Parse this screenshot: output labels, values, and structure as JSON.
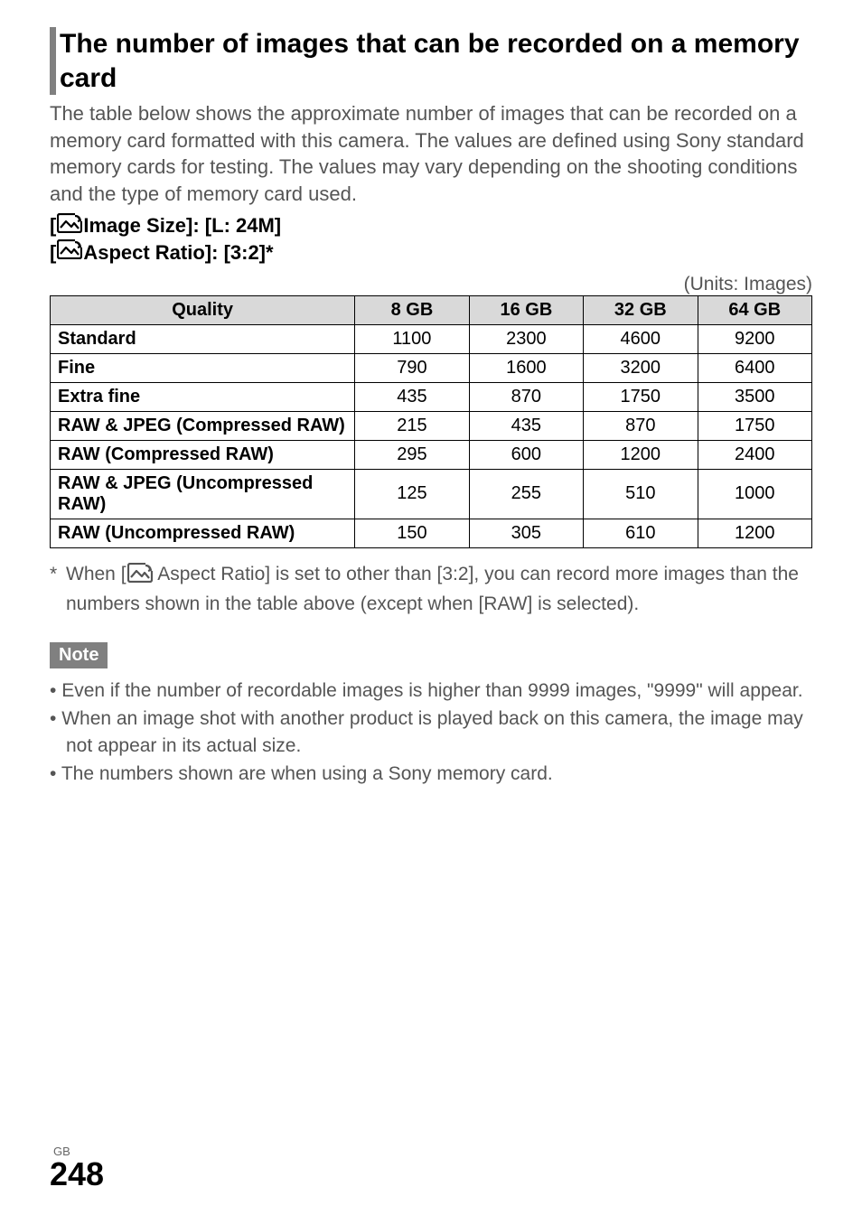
{
  "section": {
    "title": "The number of images that can be recorded on a memory card"
  },
  "intro": "The table below shows the approximate number of images that can be recorded on a memory card formatted with this camera. The values are defined using Sony standard memory cards for testing. The values may vary depending on the shooting conditions and the type of memory card used.",
  "settings": {
    "line1_prefix": "[",
    "line1_suffix": " Image Size]: [L: 24M]",
    "line2_prefix": "[",
    "line2_suffix": " Aspect Ratio]: [3:2]*"
  },
  "units_label": "(Units: Images)",
  "table": {
    "columns": [
      "Quality",
      "8 GB",
      "16 GB",
      "32 GB",
      "64 GB"
    ],
    "col_widths_pct": [
      40,
      15,
      15,
      15,
      15
    ],
    "header_bg": "#d9d9d9",
    "rows": [
      [
        "Standard",
        "1100",
        "2300",
        "4600",
        "9200"
      ],
      [
        "Fine",
        "790",
        "1600",
        "3200",
        "6400"
      ],
      [
        "Extra fine",
        "435",
        "870",
        "1750",
        "3500"
      ],
      [
        "RAW & JPEG (Compressed RAW)",
        "215",
        "435",
        "870",
        "1750"
      ],
      [
        "RAW (Compressed RAW)",
        "295",
        "600",
        "1200",
        "2400"
      ],
      [
        "RAW & JPEG (Uncompressed RAW)",
        "125",
        "255",
        "510",
        "1000"
      ],
      [
        "RAW (Uncompressed RAW)",
        "150",
        "305",
        "610",
        "1200"
      ]
    ]
  },
  "footnote": {
    "asterisk": "*",
    "text_before": "When [",
    "text_after": " Aspect Ratio] is set to other than [3:2], you can record more images than the numbers shown in the table above (except when [RAW] is selected)."
  },
  "note_label": "Note",
  "notes": [
    "Even if the number of recordable images is higher than 9999 images, \"9999\" will appear.",
    "When an image shot with another product is played back on this camera, the image may not appear in its actual size.",
    "The numbers shown are when using a Sony memory card."
  ],
  "page": {
    "region": "GB",
    "number": "248"
  },
  "style": {
    "section_bar_color": "#808080",
    "body_text_color": "#555555",
    "note_badge_bg": "#808080",
    "note_badge_fg": "#ffffff"
  }
}
